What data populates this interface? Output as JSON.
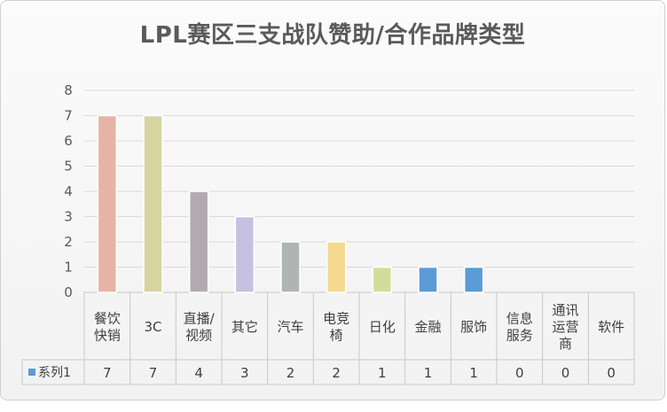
{
  "chart_data": {
    "type": "bar",
    "title": "LPL赛区三支战队赞助/合作品牌类型",
    "categories": [
      [
        "餐饮",
        "快销"
      ],
      [
        "3C"
      ],
      [
        "直播/",
        "视频"
      ],
      [
        "其它"
      ],
      [
        "汽车"
      ],
      [
        "电竞",
        "椅"
      ],
      [
        "日化"
      ],
      [
        "金融"
      ],
      [
        "服饰"
      ],
      [
        "信息",
        "服务"
      ],
      [
        "通讯",
        "运营",
        "商"
      ],
      [
        "软件"
      ]
    ],
    "series": [
      {
        "name": "系列1",
        "values": [
          7,
          7,
          4,
          3,
          2,
          2,
          1,
          1,
          1,
          0,
          0,
          0
        ]
      }
    ],
    "bar_colors": [
      "#e6b4a6",
      "#d7d4a1",
      "#b3aab0",
      "#c5c1e0",
      "#aeb5b3",
      "#f5d98f",
      "#d3dd9a",
      "#5b9bd5",
      "#5b9bd5",
      "#5b9bd5",
      "#5b9bd5",
      "#5b9bd5"
    ],
    "legend_marker_color": "#5b9bd5",
    "ylim": [
      0,
      8
    ],
    "yticks": [
      0,
      1,
      2,
      3,
      4,
      5,
      6,
      7,
      8
    ],
    "grid": true,
    "data_table": true
  }
}
